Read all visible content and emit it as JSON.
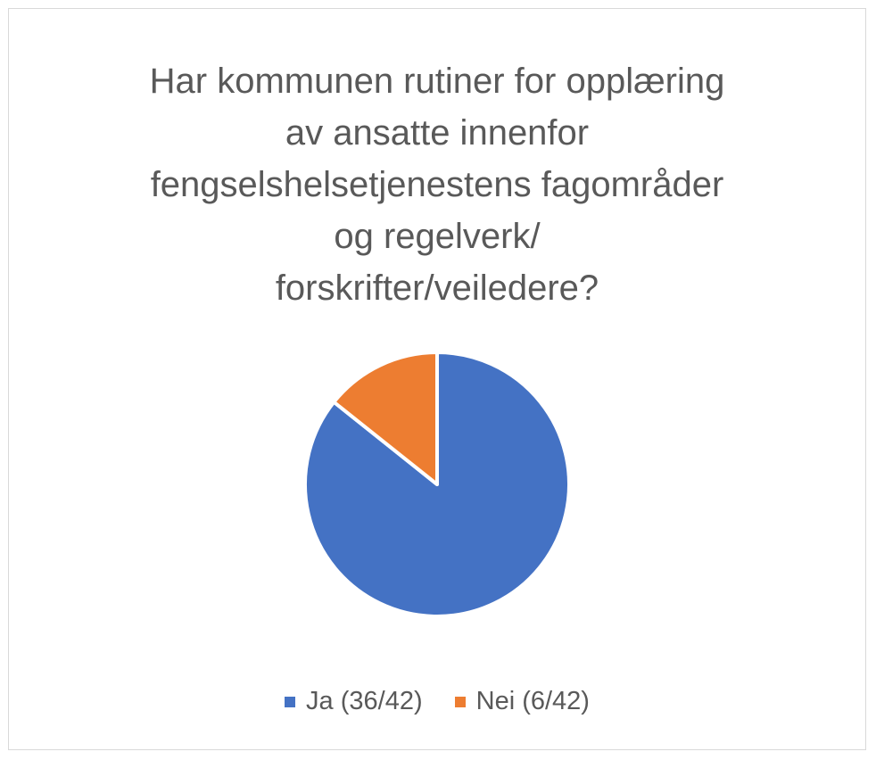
{
  "chart_data": {
    "type": "pie",
    "title_lines": [
      "Har kommunen rutiner for opplæring",
      "av ansatte innenfor",
      "fengselshelsetjenestens fagområder",
      "og regelverk/",
      "forskrifter/veiledere?"
    ],
    "slices": [
      {
        "label": "Ja (36/42)",
        "value": 36,
        "color": "#4472c4"
      },
      {
        "label": "Nei (6/42)",
        "value": 6,
        "color": "#ed7d31"
      }
    ],
    "legend_position": "bottom"
  }
}
